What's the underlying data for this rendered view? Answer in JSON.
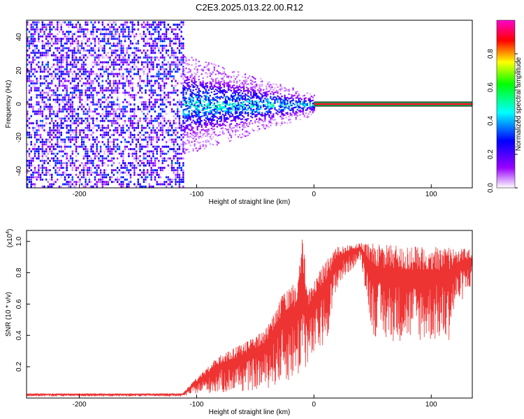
{
  "figure": {
    "title": "C2E3.2025.013.22.00.R12"
  },
  "chart_data": [
    {
      "type": "heatmap",
      "xlabel": "Height of straight line (km)",
      "ylabel": "Frequency (Hz)",
      "xlim": [
        -245,
        135
      ],
      "ylim": [
        -50,
        50
      ],
      "x_ticks": [
        -200,
        -100,
        0,
        100
      ],
      "y_ticks": [
        -40,
        -20,
        0,
        20,
        40
      ],
      "colorbar": {
        "label": "Normalized spectral amplitude",
        "range": [
          0,
          1
        ],
        "ticks": [
          "0.0",
          "0.2",
          "0.4",
          "0.6",
          "0.8"
        ],
        "colors": [
          "#ffffff",
          "#9900ff",
          "#0000ff",
          "#00ffff",
          "#00ff00",
          "#ffff00",
          "#ff0000",
          "#ff00cc"
        ]
      },
      "regions": [
        {
          "name": "noise",
          "x_range": [
            -245,
            -112
          ],
          "freq_range": [
            -50,
            50
          ],
          "amplitude_range": [
            0.0,
            0.1
          ]
        },
        {
          "name": "broadband",
          "x_range": [
            -112,
            0
          ],
          "freq_start_halfwidth": 20,
          "freq_end_halfwidth": 4,
          "amplitude_range": [
            0.05,
            0.45
          ]
        },
        {
          "name": "line",
          "x_range": [
            0,
            135
          ],
          "freq": 0,
          "amplitude": 0.9
        }
      ],
      "grid": false
    },
    {
      "type": "line",
      "xlabel": "Height of straight line (km)",
      "ylabel": "SNR (10 * v/v)",
      "y_multiplier": "(x10",
      "y_multiplier_exp": "4",
      "xlim": [
        -245,
        135
      ],
      "ylim": [
        0,
        1.07
      ],
      "x_ticks": [
        -200,
        -100,
        0,
        100
      ],
      "y_ticks": [
        "0.2",
        "0.4",
        "0.6",
        "0.8",
        "1.0"
      ],
      "color": "#ee3333",
      "envelope": {
        "x": [
          -245,
          -112,
          -100,
          -80,
          -60,
          -40,
          -25,
          -15,
          -10,
          -5,
          0,
          5,
          10,
          15,
          20,
          30,
          40,
          50,
          60,
          80,
          100,
          115,
          120,
          135
        ],
        "low": [
          0.01,
          0.01,
          0.03,
          0.03,
          0.04,
          0.06,
          0.1,
          0.12,
          0.15,
          0.2,
          0.25,
          0.3,
          0.35,
          0.5,
          0.7,
          0.8,
          0.88,
          0.4,
          0.36,
          0.36,
          0.36,
          0.36,
          0.55,
          0.72
        ],
        "high": [
          0.03,
          0.03,
          0.13,
          0.28,
          0.35,
          0.45,
          0.7,
          0.75,
          1.04,
          0.7,
          0.75,
          0.82,
          0.88,
          0.93,
          0.97,
          0.98,
          0.99,
          0.99,
          0.98,
          0.97,
          0.97,
          0.96,
          0.96,
          0.95
        ]
      },
      "grid": false
    }
  ]
}
